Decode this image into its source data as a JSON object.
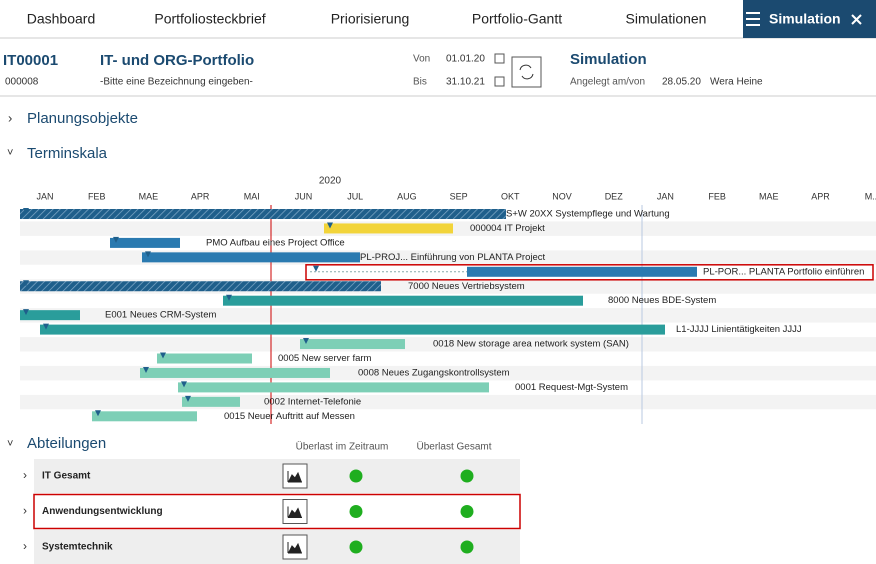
{
  "nav": {
    "items": [
      "Dashboard",
      "Portfoliosteckbrief",
      "Priorisierung",
      "Portfolio-Gantt",
      "Simulationen"
    ],
    "active": "Simulation"
  },
  "header": {
    "id": "IT00001",
    "code": "000008",
    "title": "IT- und ORG-Portfolio",
    "description": "-Bitte eine Bezeichnung eingeben-",
    "von_label": "Von",
    "von": "01.01.20",
    "bis_label": "Bis",
    "bis": "31.10.21",
    "sim_title": "Simulation",
    "created_label": "Angelegt am/von",
    "created_date": "28.05.20",
    "created_by": "Wera Heine"
  },
  "sections": {
    "planning": "Planungsobjekte",
    "timeline": "Terminskala"
  },
  "gantt": {
    "year": "2020",
    "months": [
      "JAN",
      "FEB",
      "MAE",
      "APR",
      "MAI",
      "JUN",
      "JUL",
      "AUG",
      "SEP",
      "OKT",
      "NOV",
      "DEZ",
      "JAN",
      "FEB",
      "MAE",
      "APR",
      "M..."
    ],
    "rows": [
      {
        "label": "S+W 20XX Systempflege und Wartung"
      },
      {
        "label": "000004 IT Projekt"
      },
      {
        "label": "PMO Aufbau eines Project Office"
      },
      {
        "label": "PL-PROJ... Einführung von PLANTA Project"
      },
      {
        "label": "PL-POR... PLANTA Portfolio einführen"
      },
      {
        "label": "7000 Neues Vertriebsystem"
      },
      {
        "label": "8000 Neues BDE-System"
      },
      {
        "label": "E001 Neues CRM-System"
      },
      {
        "label": "L1-JJJJ Linientätigkeiten JJJJ"
      },
      {
        "label": "0018 New storage area network system (SAN)"
      },
      {
        "label": "0005 New server farm"
      },
      {
        "label": "0008 Neues Zugangskontrollsystem"
      },
      {
        "label": "0001 Request-Mgt-System"
      },
      {
        "label": "0002 Internet-Telefonie"
      },
      {
        "label": "0015 Neuer Auftritt auf Messen"
      }
    ]
  },
  "departments": {
    "title": "Abteilungen",
    "columns": [
      "Überlast im Zeitraum",
      "Überlast Gesamt"
    ],
    "rows": [
      {
        "name": "IT Gesamt"
      },
      {
        "name": "Anwendungsentwicklung"
      },
      {
        "name": "Systemtechnik"
      }
    ]
  }
}
